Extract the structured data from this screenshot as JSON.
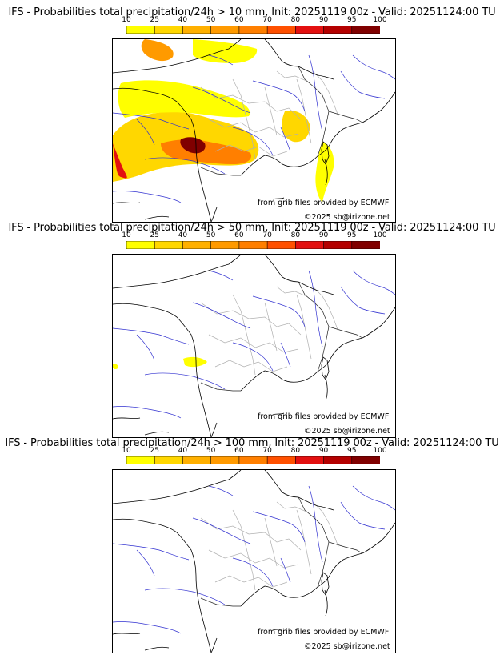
{
  "colorbar": {
    "ticks": [
      "10",
      "25",
      "40",
      "50",
      "60",
      "70",
      "80",
      "90",
      "95",
      "100"
    ],
    "colors": [
      "#ffff00",
      "#ffd700",
      "#ffb000",
      "#ff9a00",
      "#ff7f00",
      "#ff5000",
      "#e31010",
      "#b40000",
      "#800000"
    ]
  },
  "credits": {
    "source": "from grib files provided by ECMWF",
    "copyright": "©2025 sb@irizone.net"
  },
  "panels": [
    {
      "title": "IFS - Probabilities total precipitation/24h > 10 mm, Init: 20251119 00z - Valid: 20251124:00 TU",
      "threshold_mm": 10
    },
    {
      "title": "IFS - Probabilities total precipitation/24h > 50 mm, Init: 20251119 00z - Valid: 20251124:00 TU",
      "threshold_mm": 50
    },
    {
      "title": "IFS - Probabilities total precipitation/24h > 100 mm, Init: 20251119 00z - Valid: 20251124:00 TU",
      "threshold_mm": 100
    }
  ]
}
